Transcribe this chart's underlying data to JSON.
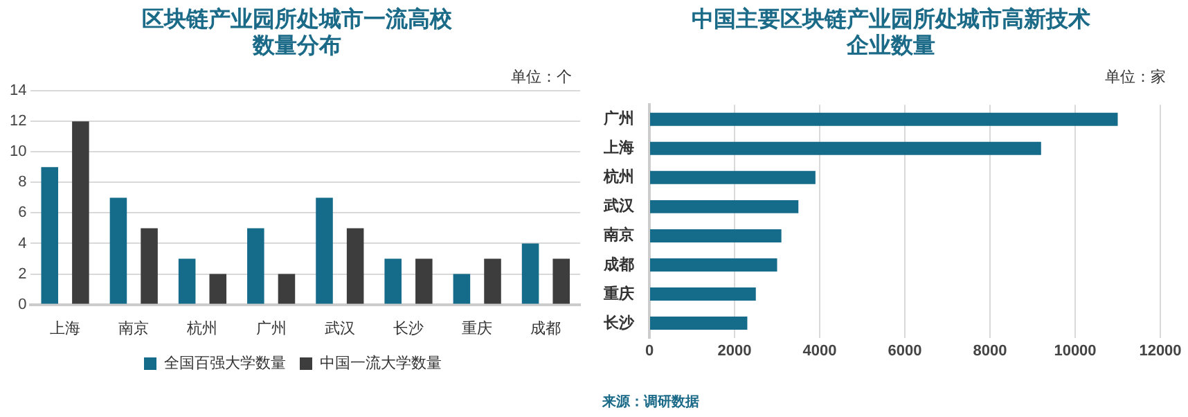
{
  "chart_data": [
    {
      "type": "bar",
      "title": "区块链产业园所处城市一流高校数量分布",
      "annotations": [
        "单位：个"
      ],
      "categories": [
        "上海",
        "南京",
        "杭州",
        "广州",
        "武汉",
        "长沙",
        "重庆",
        "成都"
      ],
      "series": [
        {
          "name": "全国百强大学数量",
          "color": "#156b8a",
          "values": [
            9,
            7,
            3,
            5,
            7,
            3,
            2,
            4
          ]
        },
        {
          "name": "中国一流大学数量",
          "color": "#3d3d3d",
          "values": [
            12,
            5,
            2,
            2,
            5,
            3,
            3,
            3
          ]
        }
      ],
      "ylim": [
        0,
        14
      ],
      "yticks": [
        0,
        2,
        4,
        6,
        8,
        10,
        12,
        14
      ],
      "grid": "y",
      "legend": "bottom"
    },
    {
      "type": "bar",
      "orientation": "horizontal",
      "title": "中国主要区块链产业园所处城市高新技术企业数量",
      "annotations": [
        "单位：家",
        "来源：调研数据"
      ],
      "categories": [
        "广州",
        "上海",
        "杭州",
        "武汉",
        "南京",
        "成都",
        "重庆",
        "长沙"
      ],
      "series": [
        {
          "color": "#156b8a",
          "values": [
            11000,
            9200,
            3900,
            3500,
            3100,
            3000,
            2500,
            2300
          ]
        }
      ],
      "xlim": [
        0,
        12000
      ],
      "xticks": [
        0,
        2000,
        4000,
        6000,
        8000,
        10000,
        12000
      ],
      "grid": "x"
    }
  ]
}
